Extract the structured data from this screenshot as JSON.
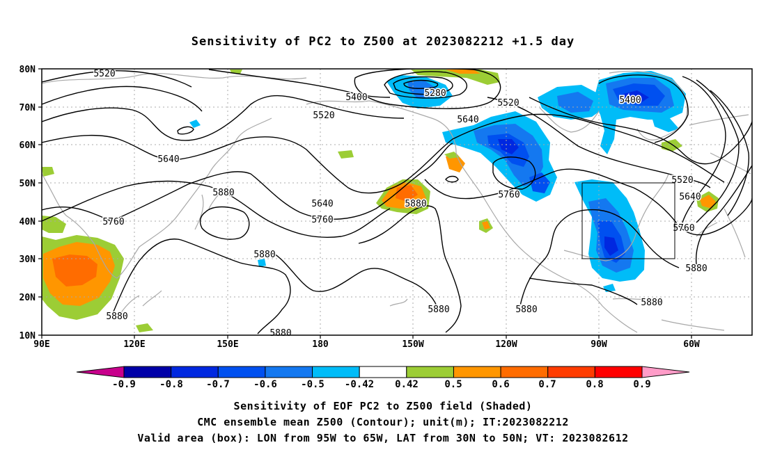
{
  "title": "Sensitivity of PC2 to Z500 at 2023082212 +1.5 day",
  "lat_labels": [
    "80N",
    "70N",
    "60N",
    "50N",
    "40N",
    "30N",
    "20N",
    "10N"
  ],
  "lon_labels": [
    "90E",
    "120E",
    "150E",
    "180",
    "150W",
    "120W",
    "90W",
    "60W"
  ],
  "contour_labels": [
    "5520",
    "5280",
    "5400",
    "5520",
    "5520",
    "5400",
    "5640",
    "5640",
    "5880",
    "5640",
    "5760",
    "5760",
    "5880",
    "5880",
    "5880",
    "5880",
    "5760",
    "5520",
    "5640",
    "5760",
    "5880",
    "5880",
    "5880",
    "5880"
  ],
  "colorbar": {
    "labels": [
      "-0.9",
      "-0.8",
      "-0.7",
      "-0.6",
      "-0.5",
      "-0.42",
      "0.42",
      "0.5",
      "0.6",
      "0.7",
      "0.8",
      "0.9"
    ],
    "colors": [
      "#0000a8",
      "#0028e0",
      "#0050f0",
      "#1478f0",
      "#00bcf8",
      "#ffffff",
      "#9ccd35",
      "#ff9600",
      "#ff6c00",
      "#ff3c00",
      "#ff0000"
    ],
    "left_cap_color": "#c8008c",
    "right_cap_color": "#ff9cc8"
  },
  "valid_area_box": {
    "lon": [
      "95W",
      "65W"
    ],
    "lat": [
      "30N",
      "50N"
    ]
  },
  "caption_lines": [
    "Sensitivity of EOF PC2 to Z500 field (Shaded)",
    "CMC ensemble mean Z500 (Contour); unit(m); IT:2023082212",
    "Valid area (box): LON from 95W to 65W, LAT from 30N to 50N; VT: 2023082612"
  ]
}
